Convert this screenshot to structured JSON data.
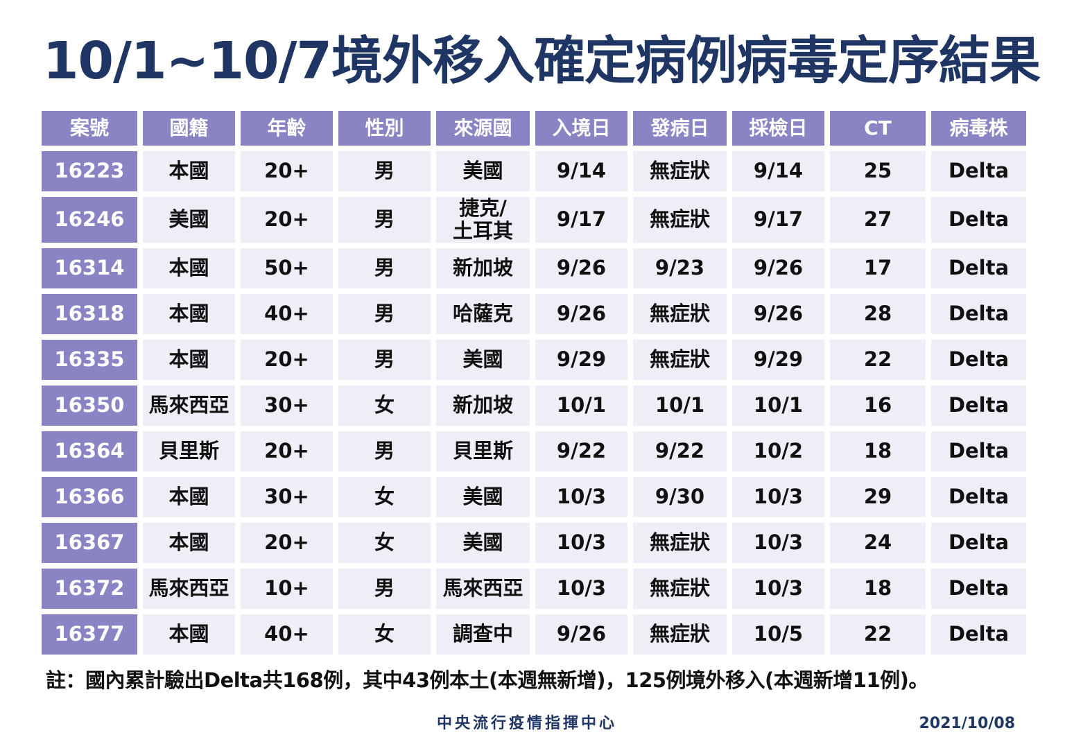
{
  "title": "10/1~10/7境外移入確定病例病毒定序結果",
  "table": {
    "headers": [
      "案號",
      "國籍",
      "年齡",
      "性別",
      "來源國",
      "入境日",
      "發病日",
      "採檢日",
      "CT",
      "病毒株"
    ],
    "rows": [
      {
        "case_id": "16223",
        "nationality": "本國",
        "age": "20+",
        "sex": "男",
        "origin_line1": "美國",
        "origin_line2": "",
        "entry_date": "9/14",
        "onset_date": "無症狀",
        "test_date": "9/14",
        "ct": "25",
        "strain": "Delta"
      },
      {
        "case_id": "16246",
        "nationality": "美國",
        "age": "20+",
        "sex": "男",
        "origin_line1": "捷克/",
        "origin_line2": "土耳其",
        "entry_date": "9/17",
        "onset_date": "無症狀",
        "test_date": "9/17",
        "ct": "27",
        "strain": "Delta"
      },
      {
        "case_id": "16314",
        "nationality": "本國",
        "age": "50+",
        "sex": "男",
        "origin_line1": "新加坡",
        "origin_line2": "",
        "entry_date": "9/26",
        "onset_date": "9/23",
        "test_date": "9/26",
        "ct": "17",
        "strain": "Delta"
      },
      {
        "case_id": "16318",
        "nationality": "本國",
        "age": "40+",
        "sex": "男",
        "origin_line1": "哈薩克",
        "origin_line2": "",
        "entry_date": "9/26",
        "onset_date": "無症狀",
        "test_date": "9/26",
        "ct": "28",
        "strain": "Delta"
      },
      {
        "case_id": "16335",
        "nationality": "本國",
        "age": "20+",
        "sex": "男",
        "origin_line1": "美國",
        "origin_line2": "",
        "entry_date": "9/29",
        "onset_date": "無症狀",
        "test_date": "9/29",
        "ct": "22",
        "strain": "Delta"
      },
      {
        "case_id": "16350",
        "nationality": "馬來西亞",
        "age": "30+",
        "sex": "女",
        "origin_line1": "新加坡",
        "origin_line2": "",
        "entry_date": "10/1",
        "onset_date": "10/1",
        "test_date": "10/1",
        "ct": "16",
        "strain": "Delta"
      },
      {
        "case_id": "16364",
        "nationality": "貝里斯",
        "age": "20+",
        "sex": "男",
        "origin_line1": "貝里斯",
        "origin_line2": "",
        "entry_date": "9/22",
        "onset_date": "9/22",
        "test_date": "10/2",
        "ct": "18",
        "strain": "Delta"
      },
      {
        "case_id": "16366",
        "nationality": "本國",
        "age": "30+",
        "sex": "女",
        "origin_line1": "美國",
        "origin_line2": "",
        "entry_date": "10/3",
        "onset_date": "9/30",
        "test_date": "10/3",
        "ct": "29",
        "strain": "Delta"
      },
      {
        "case_id": "16367",
        "nationality": "本國",
        "age": "20+",
        "sex": "女",
        "origin_line1": "美國",
        "origin_line2": "",
        "entry_date": "10/3",
        "onset_date": "無症狀",
        "test_date": "10/3",
        "ct": "24",
        "strain": "Delta"
      },
      {
        "case_id": "16372",
        "nationality": "馬來西亞",
        "age": "10+",
        "sex": "男",
        "origin_line1": "馬來西亞",
        "origin_line2": "",
        "entry_date": "10/3",
        "onset_date": "無症狀",
        "test_date": "10/3",
        "ct": "18",
        "strain": "Delta"
      },
      {
        "case_id": "16377",
        "nationality": "本國",
        "age": "40+",
        "sex": "女",
        "origin_line1": "調查中",
        "origin_line2": "",
        "entry_date": "9/26",
        "onset_date": "無症狀",
        "test_date": "10/5",
        "ct": "22",
        "strain": "Delta"
      }
    ]
  },
  "note": "註：國內累計驗出Delta共168例，其中43例本土(本週無新增)，125例境外移入(本週新增11例)。",
  "footer": {
    "organization": "中央流行疫情指揮中心",
    "date": "2021/10/08"
  },
  "colors": {
    "title": "#1f3563",
    "header_bg": "#8a84c4",
    "cell_bg": "#efeef7"
  }
}
